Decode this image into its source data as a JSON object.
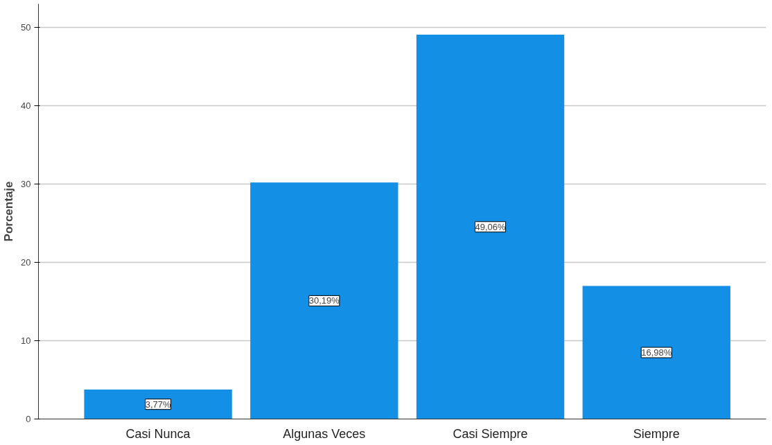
{
  "chart_data": {
    "type": "bar",
    "ylabel": "Porcentaje",
    "categories": [
      "Casi Nunca",
      "Algunas Veces",
      "Casi Siempre",
      "Siempre"
    ],
    "values": [
      3.77,
      30.19,
      49.06,
      16.98
    ],
    "value_labels": [
      "3,77%",
      "30,19%",
      "49,06%",
      "16,98%"
    ],
    "color": "#1390e6",
    "ylim": [
      0,
      53
    ],
    "yticks": [
      0,
      10,
      20,
      30,
      40,
      50
    ],
    "grid": "y"
  }
}
